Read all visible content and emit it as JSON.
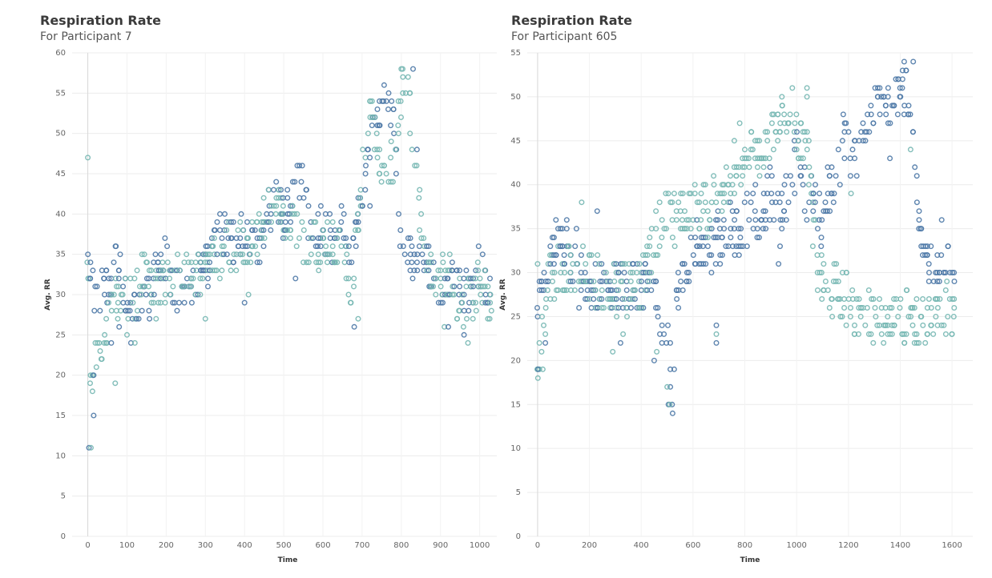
{
  "chart_data": [
    {
      "type": "scatter",
      "title": "Respiration Rate",
      "subtitle": "For Participant 7",
      "xlabel": "Time",
      "ylabel": "Avg. RR",
      "xlim": [
        -40,
        1060
      ],
      "ylim": [
        0,
        60
      ],
      "xticks": [
        0,
        100,
        200,
        300,
        400,
        500,
        600,
        700,
        800,
        900,
        1000
      ],
      "yticks": [
        0,
        5,
        10,
        15,
        20,
        25,
        30,
        35,
        40,
        45,
        50,
        55,
        60
      ],
      "colors": {
        "dark": "#4e79a7",
        "light": "#76b7b2"
      },
      "anchors_dark": [
        [
          0,
          33
        ],
        [
          20,
          30
        ],
        [
          40,
          30
        ],
        [
          60,
          31
        ],
        [
          75,
          35
        ],
        [
          90,
          32
        ],
        [
          100,
          29
        ],
        [
          120,
          27
        ],
        [
          140,
          29
        ],
        [
          160,
          30
        ],
        [
          180,
          35
        ],
        [
          200,
          34
        ],
        [
          220,
          30
        ],
        [
          250,
          31
        ],
        [
          280,
          32
        ],
        [
          300,
          33
        ],
        [
          320,
          36
        ],
        [
          350,
          38
        ],
        [
          380,
          36
        ],
        [
          400,
          39
        ],
        [
          420,
          37
        ],
        [
          440,
          36
        ],
        [
          460,
          40
        ],
        [
          480,
          42
        ],
        [
          500,
          40
        ],
        [
          520,
          42
        ],
        [
          540,
          44
        ],
        [
          560,
          41
        ],
        [
          580,
          38
        ],
        [
          600,
          38
        ],
        [
          620,
          37
        ],
        [
          650,
          38
        ],
        [
          670,
          36
        ],
        [
          690,
          39
        ],
        [
          700,
          43
        ],
        [
          710,
          46
        ],
        [
          720,
          49
        ],
        [
          740,
          52
        ],
        [
          760,
          54
        ],
        [
          780,
          52
        ],
        [
          800,
          36
        ],
        [
          820,
          35
        ],
        [
          840,
          34
        ],
        [
          860,
          35
        ],
        [
          880,
          33
        ],
        [
          900,
          30
        ],
        [
          920,
          31
        ],
        [
          940,
          32
        ],
        [
          960,
          30
        ],
        [
          980,
          31
        ],
        [
          1000,
          33
        ],
        [
          1020,
          30
        ]
      ],
      "anchors_light": [
        [
          0,
          35
        ],
        [
          5,
          20
        ],
        [
          20,
          24
        ],
        [
          40,
          24
        ],
        [
          60,
          28
        ],
        [
          80,
          30
        ],
        [
          100,
          30
        ],
        [
          120,
          29
        ],
        [
          140,
          33
        ],
        [
          160,
          31
        ],
        [
          180,
          30
        ],
        [
          200,
          32
        ],
        [
          220,
          32
        ],
        [
          240,
          33
        ],
        [
          260,
          33
        ],
        [
          280,
          32
        ],
        [
          300,
          33
        ],
        [
          320,
          34
        ],
        [
          350,
          36
        ],
        [
          380,
          36
        ],
        [
          400,
          37
        ],
        [
          420,
          36
        ],
        [
          440,
          37
        ],
        [
          460,
          41
        ],
        [
          480,
          41
        ],
        [
          500,
          39
        ],
        [
          520,
          40
        ],
        [
          540,
          38
        ],
        [
          560,
          36
        ],
        [
          580,
          36
        ],
        [
          600,
          37
        ],
        [
          620,
          36
        ],
        [
          650,
          37
        ],
        [
          670,
          30
        ],
        [
          690,
          38
        ],
        [
          700,
          47
        ],
        [
          710,
          50
        ],
        [
          720,
          53
        ],
        [
          740,
          48
        ],
        [
          760,
          45
        ],
        [
          780,
          47
        ],
        [
          800,
          56
        ],
        [
          820,
          54
        ],
        [
          840,
          43
        ],
        [
          860,
          36
        ],
        [
          880,
          31
        ],
        [
          900,
          32
        ],
        [
          920,
          33
        ],
        [
          940,
          30
        ],
        [
          960,
          29
        ],
        [
          980,
          29
        ],
        [
          1000,
          32
        ],
        [
          1020,
          30
        ]
      ],
      "outliers": [
        [
          0,
          47
        ],
        [
          3,
          11
        ],
        [
          8,
          11
        ],
        [
          15,
          15
        ],
        [
          12,
          18
        ],
        [
          15,
          20
        ],
        [
          22,
          21
        ],
        [
          60,
          24
        ],
        [
          70,
          19
        ],
        [
          80,
          26
        ],
        [
          100,
          25
        ],
        [
          110,
          24
        ],
        [
          120,
          24
        ],
        [
          130,
          27
        ],
        [
          300,
          27
        ],
        [
          400,
          29
        ],
        [
          410,
          30
        ],
        [
          530,
          32
        ],
        [
          550,
          34
        ],
        [
          680,
          26
        ],
        [
          690,
          27
        ],
        [
          720,
          41
        ],
        [
          800,
          58
        ],
        [
          830,
          58
        ],
        [
          910,
          26
        ],
        [
          920,
          26
        ],
        [
          970,
          24
        ],
        [
          960,
          25
        ],
        [
          1030,
          28
        ],
        [
          840,
          48
        ]
      ]
    },
    {
      "type": "scatter",
      "title": "Respiration Rate",
      "subtitle": "For Participant 605",
      "xlabel": "Time",
      "ylabel": "Avg. RR",
      "xlim": [
        -40,
        1680
      ],
      "ylim": [
        0,
        55
      ],
      "xticks": [
        0,
        200,
        400,
        600,
        800,
        1000,
        1200,
        1400,
        1600
      ],
      "yticks": [
        0,
        5,
        10,
        15,
        20,
        25,
        30,
        35,
        40,
        45,
        50,
        55
      ],
      "colors": {
        "dark": "#4e79a7",
        "light": "#76b7b2"
      },
      "anchors_dark": [
        [
          0,
          28
        ],
        [
          30,
          28
        ],
        [
          60,
          33
        ],
        [
          80,
          36
        ],
        [
          100,
          34
        ],
        [
          130,
          31
        ],
        [
          160,
          29
        ],
        [
          200,
          29
        ],
        [
          240,
          28
        ],
        [
          280,
          28
        ],
        [
          320,
          29
        ],
        [
          360,
          28
        ],
        [
          400,
          29
        ],
        [
          440,
          29
        ],
        [
          460,
          26
        ],
        [
          480,
          21
        ],
        [
          500,
          23
        ],
        [
          520,
          16
        ],
        [
          540,
          28
        ],
        [
          580,
          31
        ],
        [
          620,
          33
        ],
        [
          660,
          32
        ],
        [
          700,
          34
        ],
        [
          740,
          36
        ],
        [
          780,
          34
        ],
        [
          820,
          37
        ],
        [
          860,
          37
        ],
        [
          900,
          39
        ],
        [
          940,
          36
        ],
        [
          980,
          41
        ],
        [
          1000,
          43
        ],
        [
          1020,
          42
        ],
        [
          1040,
          38
        ],
        [
          1060,
          40
        ],
        [
          1080,
          38
        ],
        [
          1100,
          36
        ],
        [
          1120,
          39
        ],
        [
          1140,
          40
        ],
        [
          1160,
          42
        ],
        [
          1180,
          44
        ],
        [
          1200,
          44
        ],
        [
          1220,
          43
        ],
        [
          1240,
          44
        ],
        [
          1260,
          46
        ],
        [
          1280,
          47
        ],
        [
          1300,
          48
        ],
        [
          1320,
          49
        ],
        [
          1340,
          48
        ],
        [
          1360,
          49
        ],
        [
          1380,
          50
        ],
        [
          1400,
          51
        ],
        [
          1420,
          51
        ],
        [
          1440,
          50
        ],
        [
          1460,
          40
        ],
        [
          1480,
          35
        ],
        [
          1500,
          33
        ],
        [
          1520,
          31
        ],
        [
          1540,
          31
        ],
        [
          1560,
          31
        ],
        [
          1580,
          33
        ],
        [
          1600,
          32
        ]
      ],
      "anchors_light": [
        [
          0,
          20
        ],
        [
          20,
          24
        ],
        [
          40,
          29
        ],
        [
          60,
          29
        ],
        [
          80,
          31
        ],
        [
          100,
          30
        ],
        [
          140,
          31
        ],
        [
          180,
          30
        ],
        [
          220,
          29
        ],
        [
          260,
          29
        ],
        [
          300,
          28
        ],
        [
          340,
          28
        ],
        [
          380,
          27
        ],
        [
          420,
          30
        ],
        [
          460,
          35
        ],
        [
          500,
          37
        ],
        [
          540,
          36
        ],
        [
          580,
          37
        ],
        [
          620,
          37
        ],
        [
          660,
          37
        ],
        [
          700,
          39
        ],
        [
          740,
          40
        ],
        [
          760,
          42
        ],
        [
          780,
          42
        ],
        [
          800,
          43
        ],
        [
          830,
          43
        ],
        [
          860,
          44
        ],
        [
          880,
          45
        ],
        [
          900,
          46
        ],
        [
          940,
          48
        ],
        [
          960,
          47
        ],
        [
          980,
          48
        ],
        [
          1000,
          46
        ],
        [
          1020,
          45
        ],
        [
          1040,
          47
        ],
        [
          1060,
          36
        ],
        [
          1080,
          31
        ],
        [
          1100,
          29
        ],
        [
          1120,
          28
        ],
        [
          1140,
          28
        ],
        [
          1160,
          28
        ],
        [
          1180,
          27
        ],
        [
          1200,
          27
        ],
        [
          1220,
          25
        ]
      ],
      "outliers": [
        [
          0,
          31
        ],
        [
          2,
          19
        ],
        [
          20,
          19
        ],
        [
          30,
          22
        ],
        [
          30,
          23
        ],
        [
          150,
          35
        ],
        [
          170,
          38
        ],
        [
          230,
          37
        ],
        [
          290,
          21
        ],
        [
          320,
          22
        ],
        [
          330,
          23
        ],
        [
          450,
          20
        ],
        [
          460,
          21
        ],
        [
          480,
          22
        ],
        [
          500,
          17
        ],
        [
          505,
          15
        ],
        [
          510,
          15
        ],
        [
          690,
          24
        ],
        [
          690,
          23
        ],
        [
          690,
          22
        ],
        [
          780,
          47
        ],
        [
          930,
          31
        ],
        [
          1040,
          51
        ],
        [
          1180,
          48
        ],
        [
          1210,
          39
        ],
        [
          1360,
          43
        ],
        [
          1440,
          44
        ],
        [
          1450,
          54
        ],
        [
          1580,
          29
        ],
        [
          1560,
          36
        ]
      ]
    }
  ]
}
